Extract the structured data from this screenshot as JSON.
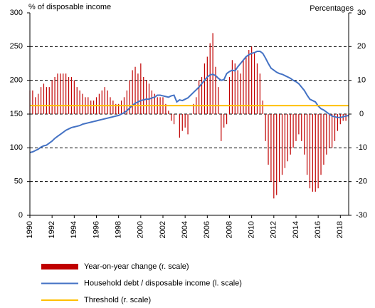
{
  "chart_data": {
    "type": "bar-line",
    "y_label": "% of disposable income",
    "y2_label": "Percentages",
    "xlim": [
      1990,
      2018.75
    ],
    "xticks": [
      1990,
      1992,
      1994,
      1996,
      1998,
      2000,
      2002,
      2004,
      2006,
      2008,
      2010,
      2012,
      2014,
      2016,
      2018
    ],
    "ylim": [
      0,
      300
    ],
    "yticks": [
      0,
      50,
      100,
      150,
      200,
      250,
      300
    ],
    "y2lim": [
      -30,
      30
    ],
    "y2ticks": [
      -30,
      -20,
      -10,
      0,
      10,
      20,
      30
    ],
    "grid": true,
    "x": [
      1990,
      1990.25,
      1990.5,
      1990.75,
      1991,
      1991.25,
      1991.5,
      1991.75,
      1992,
      1992.25,
      1992.5,
      1992.75,
      1993,
      1993.25,
      1993.5,
      1993.75,
      1994,
      1994.25,
      1994.5,
      1994.75,
      1995,
      1995.25,
      1995.5,
      1995.75,
      1996,
      1996.25,
      1996.5,
      1996.75,
      1997,
      1997.25,
      1997.5,
      1997.75,
      1998,
      1998.25,
      1998.5,
      1998.75,
      1999,
      1999.25,
      1999.5,
      1999.75,
      2000,
      2000.25,
      2000.5,
      2000.75,
      2001,
      2001.25,
      2001.5,
      2001.75,
      2002,
      2002.25,
      2002.5,
      2002.75,
      2003,
      2003.25,
      2003.5,
      2003.75,
      2004,
      2004.25,
      2004.5,
      2004.75,
      2005,
      2005.25,
      2005.5,
      2005.75,
      2006,
      2006.25,
      2006.5,
      2006.75,
      2007,
      2007.25,
      2007.5,
      2007.75,
      2008,
      2008.25,
      2008.5,
      2008.75,
      2009,
      2009.25,
      2009.5,
      2009.75,
      2010,
      2010.25,
      2010.5,
      2010.75,
      2011,
      2011.25,
      2011.5,
      2011.75,
      2012,
      2012.25,
      2012.5,
      2012.75,
      2013,
      2013.25,
      2013.5,
      2013.75,
      2014,
      2014.25,
      2014.5,
      2014.75,
      2015,
      2015.25,
      2015.5,
      2015.75,
      2016,
      2016.25,
      2016.5,
      2016.75,
      2017,
      2017.25,
      2017.5,
      2017.75,
      2018,
      2018.25,
      2018.5,
      2018.75
    ],
    "series": [
      {
        "name": "Year-on-year change (r. scale)",
        "kind": "bar",
        "axis": "y2",
        "color": "#c00000",
        "values": [
          7,
          7,
          5,
          6,
          8,
          9,
          8,
          8,
          10,
          11,
          12,
          12,
          12,
          12,
          11,
          11,
          10,
          8,
          7,
          6,
          5,
          5,
          4,
          4,
          5,
          6,
          7,
          8,
          7,
          5,
          4,
          3,
          3,
          4,
          5,
          7,
          10,
          13,
          14,
          12,
          15,
          11,
          10,
          9,
          7,
          6,
          5,
          5,
          5,
          3,
          1,
          -2,
          -3,
          0,
          -7,
          -5,
          -4,
          -6,
          0,
          3,
          5,
          10,
          11,
          15,
          17,
          21,
          24,
          14,
          8,
          -8,
          -4,
          -3,
          11,
          16,
          15,
          13,
          12,
          16,
          17,
          19,
          20,
          18,
          15,
          12,
          4,
          -8,
          -15,
          -20,
          -25,
          -24,
          -20,
          -18,
          -16,
          -14,
          -12,
          -10,
          -8,
          -6,
          -8,
          -12,
          -18,
          -22,
          -23,
          -23,
          -22,
          -18,
          -15,
          -12,
          -10,
          -10,
          -8,
          -5,
          -3,
          -2,
          -2,
          -1
        ]
      },
      {
        "name": "Household debt / disposable income (l. scale)",
        "kind": "line",
        "color": "#4472c4",
        "values": [
          93,
          94,
          96,
          98,
          101,
          103,
          104,
          107,
          110,
          114,
          117,
          120,
          123,
          126,
          128,
          130,
          131,
          132,
          133,
          135,
          136,
          137,
          138,
          139,
          140,
          141,
          142,
          143,
          144,
          145,
          146,
          147,
          148,
          150,
          152,
          155,
          159,
          163,
          166,
          168,
          170,
          171,
          172,
          172,
          174,
          175,
          178,
          178,
          177,
          176,
          175,
          177,
          178,
          168,
          171,
          170,
          172,
          174,
          178,
          182,
          186,
          190,
          195,
          200,
          205,
          208,
          209,
          207,
          203,
          200,
          201,
          210,
          213,
          215,
          214,
          220,
          225,
          230,
          235,
          238,
          240,
          241,
          243,
          243,
          240,
          233,
          225,
          218,
          215,
          212,
          210,
          209,
          207,
          205,
          203,
          200,
          198,
          195,
          190,
          185,
          178,
          172,
          170,
          168,
          162,
          158,
          156,
          153,
          150,
          147,
          146,
          145,
          145,
          146,
          147,
          148
        ]
      },
      {
        "name": "Threshold (r. scale)",
        "kind": "line",
        "axis": "y2",
        "color": "#ffc000",
        "x": [
          1990,
          2018.75
        ],
        "values": [
          2.5,
          2.5
        ]
      }
    ]
  }
}
